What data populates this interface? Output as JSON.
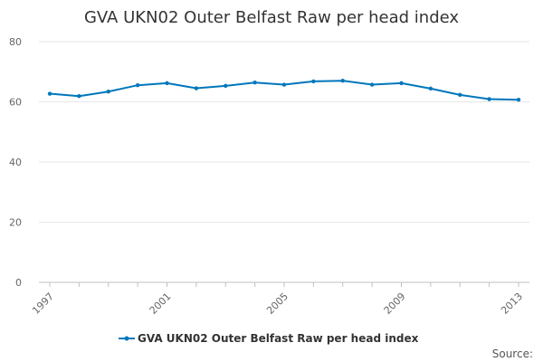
{
  "chart_data": {
    "type": "line",
    "title": "GVA UKN02 Outer Belfast Raw per head index",
    "xlabel": "",
    "ylabel": "",
    "x": [
      1997,
      1998,
      1999,
      2000,
      2001,
      2002,
      2003,
      2004,
      2005,
      2006,
      2007,
      2008,
      2009,
      2010,
      2011,
      2012,
      2013
    ],
    "series": [
      {
        "name": "GVA UKN02 Outer Belfast Raw per head index",
        "color": "#0077bb",
        "values": [
          62.7,
          61.9,
          63.4,
          65.5,
          66.2,
          64.5,
          65.3,
          66.4,
          65.7,
          66.8,
          67.0,
          65.7,
          66.2,
          64.4,
          62.3,
          60.9,
          60.7
        ]
      }
    ],
    "xlim": [
      1997,
      2013
    ],
    "ylim": [
      0,
      80
    ],
    "yticks": [
      0,
      20,
      40,
      60,
      80
    ],
    "xticks": [
      "1997",
      "2001",
      "2005",
      "2009",
      "2013"
    ],
    "grid": true,
    "legend": "bottom-center",
    "source_label": "Source:"
  }
}
